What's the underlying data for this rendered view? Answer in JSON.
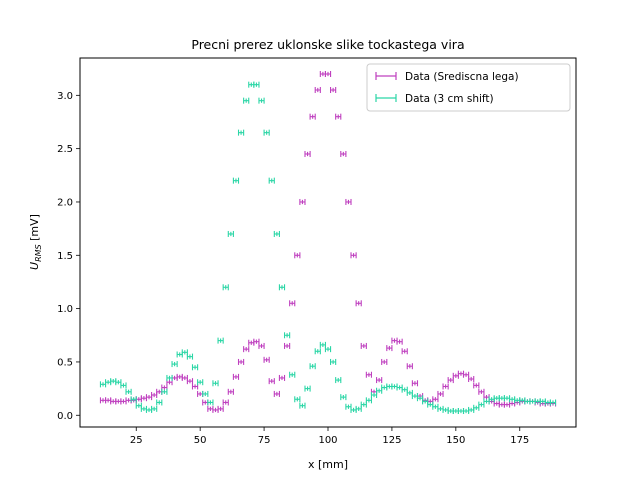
{
  "chart_data": {
    "type": "scatter",
    "title": "Precni prerez uklonske slike tockastega vira",
    "xlabel": "x [mm]",
    "ylabel_main": "U",
    "ylabel_sub": "RMS",
    "ylabel_unit": " [mV]",
    "xlim": [
      3,
      197
    ],
    "ylim": [
      -0.11,
      3.35
    ],
    "xticks": [
      25,
      50,
      75,
      100,
      125,
      150,
      175
    ],
    "yticks": [
      0.0,
      0.5,
      1.0,
      1.5,
      2.0,
      2.5,
      3.0
    ],
    "xtick_labels": [
      "25",
      "50",
      "75",
      "100",
      "125",
      "150",
      "175"
    ],
    "ytick_labels": [
      "0.0",
      "0.5",
      "1.0",
      "1.5",
      "2.0",
      "2.5",
      "3.0"
    ],
    "grid": false,
    "legend_position": "top-right",
    "error_x": 1.0,
    "error_y": 0.02,
    "series": [
      {
        "name": "Data (Srediscna lega)",
        "color": "#bf40bf",
        "x": [
          12,
          14,
          16,
          18,
          20,
          22,
          24,
          26,
          28,
          30,
          32,
          34,
          36,
          38,
          40,
          42,
          44,
          46,
          48,
          50,
          52,
          54,
          56,
          58,
          60,
          62,
          64,
          66,
          68,
          70,
          72,
          74,
          76,
          78,
          80,
          82,
          84,
          86,
          88,
          90,
          92,
          94,
          96,
          98,
          100,
          102,
          104,
          106,
          108,
          110,
          112,
          114,
          116,
          118,
          120,
          122,
          124,
          126,
          128,
          130,
          132,
          134,
          136,
          138,
          140,
          142,
          144,
          146,
          148,
          150,
          152,
          154,
          156,
          158,
          160,
          162,
          164,
          166,
          168,
          170,
          172,
          174,
          176,
          178,
          180,
          182,
          184,
          186,
          188
        ],
        "y": [
          0.14,
          0.14,
          0.13,
          0.13,
          0.13,
          0.14,
          0.14,
          0.15,
          0.16,
          0.17,
          0.19,
          0.22,
          0.26,
          0.31,
          0.35,
          0.36,
          0.35,
          0.32,
          0.27,
          0.2,
          0.12,
          0.06,
          0.05,
          0.06,
          0.12,
          0.22,
          0.36,
          0.5,
          0.62,
          0.68,
          0.69,
          0.65,
          0.52,
          0.32,
          0.2,
          0.35,
          0.65,
          1.05,
          1.5,
          2.0,
          2.45,
          2.8,
          3.05,
          3.2,
          3.2,
          3.05,
          2.8,
          2.45,
          2.0,
          1.5,
          1.05,
          0.65,
          0.38,
          0.22,
          0.33,
          0.5,
          0.63,
          0.7,
          0.69,
          0.6,
          0.46,
          0.3,
          0.18,
          0.14,
          0.13,
          0.15,
          0.2,
          0.27,
          0.33,
          0.37,
          0.39,
          0.38,
          0.34,
          0.28,
          0.22,
          0.17,
          0.13,
          0.11,
          0.1,
          0.1,
          0.11,
          0.12,
          0.13,
          0.13,
          0.13,
          0.12,
          0.11,
          0.11,
          0.11
        ]
      },
      {
        "name": "Data (3 cm shift)",
        "color": "#2bd6a6",
        "x": [
          12,
          14,
          16,
          18,
          20,
          22,
          24,
          26,
          28,
          30,
          32,
          34,
          36,
          38,
          40,
          42,
          44,
          46,
          48,
          50,
          52,
          54,
          56,
          58,
          60,
          62,
          64,
          66,
          68,
          70,
          72,
          74,
          76,
          78,
          80,
          82,
          84,
          86,
          88,
          90,
          92,
          94,
          96,
          98,
          100,
          102,
          104,
          106,
          108,
          110,
          112,
          114,
          116,
          118,
          120,
          122,
          124,
          126,
          128,
          130,
          132,
          134,
          136,
          138,
          140,
          142,
          144,
          146,
          148,
          150,
          152,
          154,
          156,
          158,
          160,
          162,
          164,
          166,
          168,
          170,
          172,
          174,
          176,
          178,
          180,
          182,
          184,
          186,
          188
        ],
        "y": [
          0.29,
          0.31,
          0.32,
          0.31,
          0.28,
          0.22,
          0.15,
          0.09,
          0.06,
          0.05,
          0.06,
          0.12,
          0.22,
          0.35,
          0.48,
          0.57,
          0.59,
          0.55,
          0.45,
          0.31,
          0.2,
          0.12,
          0.3,
          0.7,
          1.2,
          1.7,
          2.2,
          2.65,
          2.95,
          3.1,
          3.1,
          2.95,
          2.65,
          2.2,
          1.7,
          1.2,
          0.75,
          0.38,
          0.15,
          0.09,
          0.25,
          0.46,
          0.6,
          0.66,
          0.62,
          0.5,
          0.33,
          0.17,
          0.08,
          0.05,
          0.06,
          0.1,
          0.14,
          0.19,
          0.23,
          0.26,
          0.27,
          0.27,
          0.26,
          0.24,
          0.21,
          0.18,
          0.16,
          0.13,
          0.1,
          0.08,
          0.06,
          0.05,
          0.04,
          0.04,
          0.04,
          0.04,
          0.05,
          0.07,
          0.1,
          0.13,
          0.15,
          0.16,
          0.16,
          0.16,
          0.15,
          0.14,
          0.14,
          0.13,
          0.13,
          0.13,
          0.13,
          0.12,
          0.12
        ]
      }
    ]
  }
}
